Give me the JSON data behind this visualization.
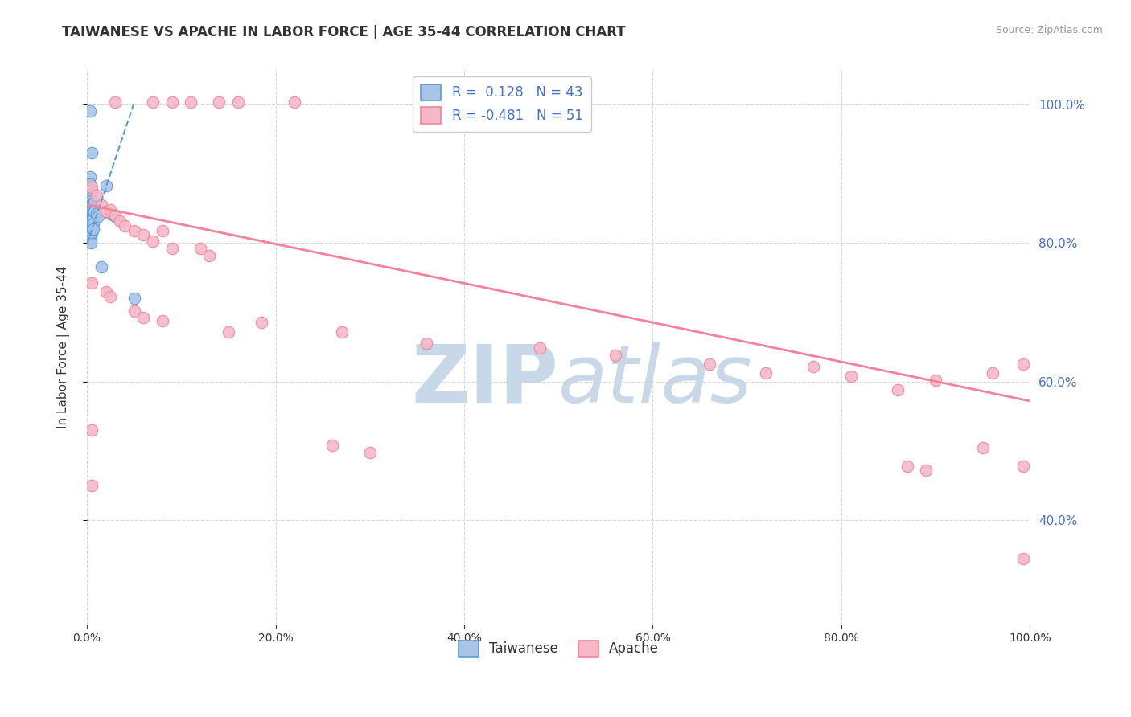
{
  "title": "TAIWANESE VS APACHE IN LABOR FORCE | AGE 35-44 CORRELATION CHART",
  "source": "Source: ZipAtlas.com",
  "ylabel": "In Labor Force | Age 35-44",
  "xlim": [
    0.0,
    1.0
  ],
  "ylim": [
    0.25,
    1.05
  ],
  "xticks": [
    0.0,
    0.2,
    0.4,
    0.6,
    0.8,
    1.0
  ],
  "yticks": [
    0.4,
    0.6,
    0.8,
    1.0
  ],
  "right_yticks": [
    0.4,
    0.6,
    0.8,
    1.0
  ],
  "legend_entries": [
    {
      "label": "Taiwanese",
      "r": 0.128,
      "n": 43
    },
    {
      "label": "Apache",
      "r": -0.481,
      "n": 51
    }
  ],
  "taiwanese_scatter": [
    [
      0.003,
      0.99
    ],
    [
      0.005,
      0.93
    ],
    [
      0.003,
      0.895
    ],
    [
      0.003,
      0.885
    ],
    [
      0.003,
      0.875
    ],
    [
      0.004,
      0.87
    ],
    [
      0.004,
      0.865
    ],
    [
      0.004,
      0.86
    ],
    [
      0.004,
      0.855
    ],
    [
      0.004,
      0.85
    ],
    [
      0.004,
      0.845
    ],
    [
      0.004,
      0.84
    ],
    [
      0.004,
      0.835
    ],
    [
      0.004,
      0.83
    ],
    [
      0.004,
      0.825
    ],
    [
      0.004,
      0.82
    ],
    [
      0.004,
      0.815
    ],
    [
      0.004,
      0.81
    ],
    [
      0.004,
      0.805
    ],
    [
      0.004,
      0.8
    ],
    [
      0.005,
      0.855
    ],
    [
      0.005,
      0.848
    ],
    [
      0.005,
      0.838
    ],
    [
      0.005,
      0.83
    ],
    [
      0.005,
      0.822
    ],
    [
      0.005,
      0.815
    ],
    [
      0.006,
      0.848
    ],
    [
      0.006,
      0.838
    ],
    [
      0.006,
      0.828
    ],
    [
      0.006,
      0.82
    ],
    [
      0.007,
      0.845
    ],
    [
      0.007,
      0.835
    ],
    [
      0.007,
      0.828
    ],
    [
      0.007,
      0.82
    ],
    [
      0.008,
      0.858
    ],
    [
      0.008,
      0.845
    ],
    [
      0.01,
      0.842
    ],
    [
      0.012,
      0.838
    ],
    [
      0.015,
      0.765
    ],
    [
      0.02,
      0.882
    ],
    [
      0.025,
      0.842
    ],
    [
      0.03,
      0.838
    ],
    [
      0.05,
      0.72
    ]
  ],
  "apache_scatter": [
    [
      0.03,
      1.003
    ],
    [
      0.07,
      1.003
    ],
    [
      0.09,
      1.003
    ],
    [
      0.11,
      1.003
    ],
    [
      0.14,
      1.003
    ],
    [
      0.16,
      1.003
    ],
    [
      0.22,
      1.003
    ],
    [
      0.005,
      0.88
    ],
    [
      0.01,
      0.868
    ],
    [
      0.015,
      0.855
    ],
    [
      0.02,
      0.845
    ],
    [
      0.025,
      0.848
    ],
    [
      0.03,
      0.84
    ],
    [
      0.035,
      0.832
    ],
    [
      0.04,
      0.825
    ],
    [
      0.05,
      0.818
    ],
    [
      0.06,
      0.812
    ],
    [
      0.07,
      0.802
    ],
    [
      0.08,
      0.818
    ],
    [
      0.09,
      0.792
    ],
    [
      0.12,
      0.792
    ],
    [
      0.13,
      0.782
    ],
    [
      0.005,
      0.742
    ],
    [
      0.02,
      0.73
    ],
    [
      0.025,
      0.722
    ],
    [
      0.05,
      0.702
    ],
    [
      0.06,
      0.692
    ],
    [
      0.08,
      0.688
    ],
    [
      0.15,
      0.672
    ],
    [
      0.185,
      0.685
    ],
    [
      0.27,
      0.672
    ],
    [
      0.36,
      0.655
    ],
    [
      0.48,
      0.648
    ],
    [
      0.56,
      0.638
    ],
    [
      0.66,
      0.625
    ],
    [
      0.72,
      0.612
    ],
    [
      0.77,
      0.622
    ],
    [
      0.81,
      0.608
    ],
    [
      0.86,
      0.588
    ],
    [
      0.9,
      0.602
    ],
    [
      0.96,
      0.612
    ],
    [
      0.993,
      0.625
    ],
    [
      0.005,
      0.53
    ],
    [
      0.005,
      0.45
    ],
    [
      0.26,
      0.508
    ],
    [
      0.3,
      0.498
    ],
    [
      0.87,
      0.478
    ],
    [
      0.89,
      0.472
    ],
    [
      0.95,
      0.505
    ],
    [
      0.993,
      0.478
    ],
    [
      0.993,
      0.345
    ]
  ],
  "taiwanese_line": {
    "x0": 0.0,
    "x1": 0.05,
    "y0": 0.798,
    "y1": 1.002
  },
  "apache_line": {
    "x0": 0.0,
    "x1": 1.0,
    "y0": 0.855,
    "y1": 0.572
  },
  "taiwanese_color": "#5b9bd5",
  "apache_color": "#f4829a",
  "taiwanese_marker_color": "#aac4e8",
  "apache_marker_color": "#f4b8c8",
  "right_label_color": "#4472c4",
  "background_color": "#ffffff",
  "gridline_color": "#d8d8d8",
  "watermark_color": "#c8d8e8"
}
